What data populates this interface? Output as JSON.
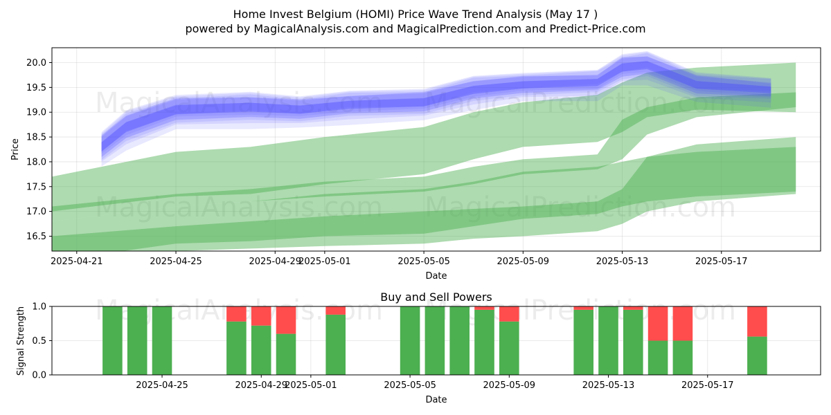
{
  "title_line1": "Home Invest Belgium (HOMI) Price Wave Trend Analysis (May 17 )",
  "title_line2": "powered by MagicalAnalysis.com and MagicalPrediction.com and Predict-Price.com",
  "watermarks": [
    "MagicalAnalysis.com",
    "MagicalPrediction.com"
  ],
  "colors": {
    "price_band": "#4a4aff",
    "trend_band": "#4caf50",
    "buy": "#4caf50",
    "sell": "#ff4d4d"
  },
  "chart_data": [
    {
      "type": "area",
      "xlabel": "Date",
      "ylabel": "Price",
      "x_ticks": [
        "2025-04-21",
        "2025-04-25",
        "2025-04-29",
        "2025-05-01",
        "2025-05-05",
        "2025-05-09",
        "2025-05-13",
        "2025-05-17"
      ],
      "y_ticks": [
        "16.5",
        "17.0",
        "17.5",
        "18.0",
        "18.5",
        "19.0",
        "19.5",
        "20.0"
      ],
      "ylim": [
        16.2,
        20.3
      ],
      "xlim": [
        "2025-04-20",
        "2025-05-21"
      ],
      "grid": true,
      "price_wave": {
        "x": [
          "2025-04-22",
          "2025-04-23",
          "2025-04-25",
          "2025-04-28",
          "2025-04-30",
          "2025-05-02",
          "2025-05-05",
          "2025-05-07",
          "2025-05-09",
          "2025-05-12",
          "2025-05-13",
          "2025-05-14",
          "2025-05-16",
          "2025-05-19"
        ],
        "center": [
          18.3,
          18.7,
          19.05,
          19.1,
          19.05,
          19.15,
          19.2,
          19.45,
          19.55,
          19.6,
          19.9,
          19.95,
          19.55,
          19.45
        ],
        "half_width": [
          0.2,
          0.22,
          0.2,
          0.2,
          0.18,
          0.18,
          0.18,
          0.18,
          0.16,
          0.16,
          0.18,
          0.18,
          0.17,
          0.15
        ]
      },
      "trend_bands": [
        {
          "x": [
            "2025-04-20",
            "2025-04-25",
            "2025-04-28",
            "2025-05-01",
            "2025-05-05",
            "2025-05-07",
            "2025-05-09",
            "2025-05-12",
            "2025-05-13",
            "2025-05-14",
            "2025-05-16",
            "2025-05-20"
          ],
          "upper": [
            17.7,
            18.2,
            18.3,
            18.5,
            18.7,
            19.0,
            19.2,
            19.35,
            19.6,
            19.8,
            19.9,
            20.0
          ],
          "lower": [
            17.0,
            17.3,
            17.35,
            17.55,
            17.75,
            18.05,
            18.3,
            18.4,
            18.6,
            18.9,
            19.05,
            19.0
          ]
        },
        {
          "x": [
            "2025-04-20",
            "2025-04-25",
            "2025-04-28",
            "2025-05-01",
            "2025-05-05",
            "2025-05-07",
            "2025-05-09",
            "2025-05-12",
            "2025-05-13",
            "2025-05-14",
            "2025-05-16",
            "2025-05-20"
          ],
          "upper": [
            17.1,
            17.35,
            17.45,
            17.6,
            17.7,
            17.9,
            18.05,
            18.15,
            18.85,
            19.1,
            19.3,
            19.4
          ],
          "lower": [
            16.8,
            17.1,
            17.2,
            17.3,
            17.4,
            17.55,
            17.75,
            17.85,
            18.05,
            18.55,
            18.9,
            19.1
          ]
        },
        {
          "x": [
            "2025-04-20",
            "2025-04-25",
            "2025-04-28",
            "2025-05-01",
            "2025-05-05",
            "2025-05-07",
            "2025-05-09",
            "2025-05-12",
            "2025-05-13",
            "2025-05-14",
            "2025-05-16",
            "2025-05-20"
          ],
          "upper": [
            16.8,
            17.1,
            17.2,
            17.35,
            17.45,
            17.6,
            17.8,
            17.9,
            18.0,
            18.1,
            18.2,
            18.3
          ],
          "lower": [
            16.0,
            16.35,
            16.4,
            16.5,
            16.55,
            16.7,
            16.85,
            16.95,
            17.1,
            17.2,
            17.3,
            17.4
          ]
        },
        {
          "x": [
            "2025-04-20",
            "2025-04-25",
            "2025-04-28",
            "2025-05-01",
            "2025-05-05",
            "2025-05-07",
            "2025-05-09",
            "2025-05-12",
            "2025-05-13",
            "2025-05-14",
            "2025-05-16",
            "2025-05-20"
          ],
          "upper": [
            16.5,
            16.7,
            16.8,
            16.9,
            17.0,
            17.05,
            17.1,
            17.2,
            17.45,
            18.1,
            18.35,
            18.5
          ],
          "lower": [
            15.9,
            16.2,
            16.25,
            16.3,
            16.35,
            16.45,
            16.5,
            16.6,
            16.75,
            17.0,
            17.2,
            17.35
          ]
        }
      ]
    },
    {
      "type": "bar",
      "title": "Buy and Sell Powers",
      "xlabel": "Date",
      "ylabel": "Signal Strength",
      "x_ticks": [
        "2025-04-25",
        "2025-04-29",
        "2025-05-01",
        "2025-05-05",
        "2025-05-09",
        "2025-05-13",
        "2025-05-17"
      ],
      "y_ticks": [
        "0.0",
        "0.5",
        "1.0"
      ],
      "ylim": [
        0,
        1
      ],
      "xlim": [
        "2025-04-20",
        "2025-05-21"
      ],
      "grid": true,
      "categories": [
        "2025-04-23",
        "2025-04-24",
        "2025-04-25",
        "2025-04-28",
        "2025-04-29",
        "2025-04-30",
        "2025-05-02",
        "2025-05-05",
        "2025-05-06",
        "2025-05-07",
        "2025-05-08",
        "2025-05-09",
        "2025-05-12",
        "2025-05-13",
        "2025-05-14",
        "2025-05-15",
        "2025-05-16",
        "2025-05-19"
      ],
      "series": [
        {
          "name": "buy",
          "values": [
            1.0,
            1.0,
            1.0,
            0.78,
            0.72,
            0.6,
            0.88,
            1.0,
            1.0,
            1.0,
            0.95,
            0.78,
            0.95,
            1.0,
            0.95,
            0.5,
            0.5,
            0.56
          ]
        },
        {
          "name": "sell",
          "values": [
            0.0,
            0.0,
            0.0,
            0.22,
            0.28,
            0.4,
            0.12,
            0.0,
            0.0,
            0.0,
            0.05,
            0.22,
            0.05,
            0.0,
            0.05,
            0.5,
            0.5,
            0.44
          ]
        }
      ]
    }
  ]
}
